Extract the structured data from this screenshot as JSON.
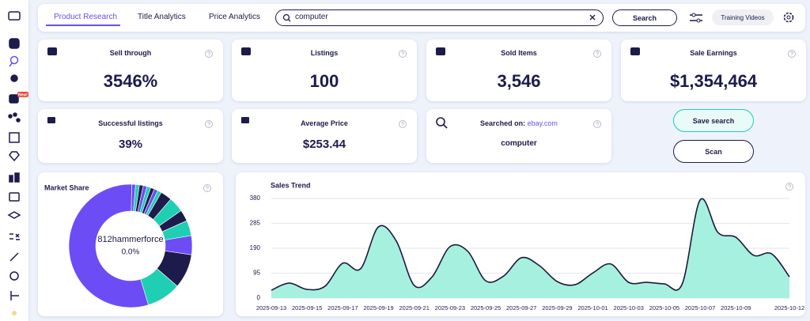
{
  "sidebar_badge": "New!",
  "tabs": [
    "Product Research",
    "Title Analytics",
    "Price Analytics"
  ],
  "search": {
    "query": "computer",
    "button": "Search"
  },
  "training_videos": "Training Videos",
  "stat_cards": [
    {
      "title": "Sell through",
      "value": "3546%"
    },
    {
      "title": "Listings",
      "value": "100"
    },
    {
      "title": "Sold Items",
      "value": "3,546"
    },
    {
      "title": "Sale Earnings",
      "value": "$1,354,464"
    }
  ],
  "small_cards": [
    {
      "title": "Successful listings",
      "value": "39%"
    },
    {
      "title": "Average Price",
      "value": "$253.44"
    }
  ],
  "searched_on": {
    "title": "Searched on:",
    "site": "ebay.com",
    "value": "computer"
  },
  "buttons": [
    "Save search",
    "Scan"
  ],
  "chart_data": [
    {
      "type": "pie",
      "title": "Market Share",
      "center_label": "812hammerforce",
      "center_value_label": "0.0%",
      "values": [
        1,
        1,
        1,
        1,
        1,
        1,
        1,
        1,
        3,
        4,
        3,
        4,
        5,
        9,
        9,
        55
      ],
      "colors": [
        "#6c4cf5",
        "#1fcfb4",
        "#1d1b4b",
        "#6c4cf5",
        "#1fcfb4",
        "#1d1b4b",
        "#6c4cf5",
        "#1fcfb4",
        "#1d1b4b",
        "#1fcfb4",
        "#1d1b4b",
        "#1fcfb4",
        "#6c4cf5",
        "#1d1b4b",
        "#1fcfb4",
        "#6c4cf5"
      ]
    },
    {
      "type": "area",
      "title": "Sales Trend",
      "categories": [
        "2025-09-13",
        null,
        "2025-09-15",
        null,
        "2025-09-17",
        null,
        "2025-09-19",
        null,
        "2025-09-21",
        null,
        "2025-09-23",
        null,
        "2025-09-25",
        null,
        "2025-09-27",
        null,
        "2025-09-29",
        null,
        "2025-10-01",
        null,
        "2025-10-03",
        null,
        "2025-10-05",
        null,
        "2025-10-07",
        null,
        "2025-10-09",
        null,
        null,
        "2025-10-12"
      ],
      "values": [
        30,
        57,
        33,
        45,
        133,
        112,
        272,
        217,
        48,
        81,
        196,
        178,
        66,
        84,
        154,
        124,
        63,
        51,
        96,
        130,
        60,
        60,
        54,
        54,
        374,
        250,
        232,
        163,
        169,
        81
      ],
      "color": "#a6f0e0",
      "line_color": "#1d1b3a",
      "ylim": [
        0,
        380
      ],
      "yticks": [
        0,
        95,
        190,
        285,
        380
      ],
      "grid": true
    }
  ]
}
